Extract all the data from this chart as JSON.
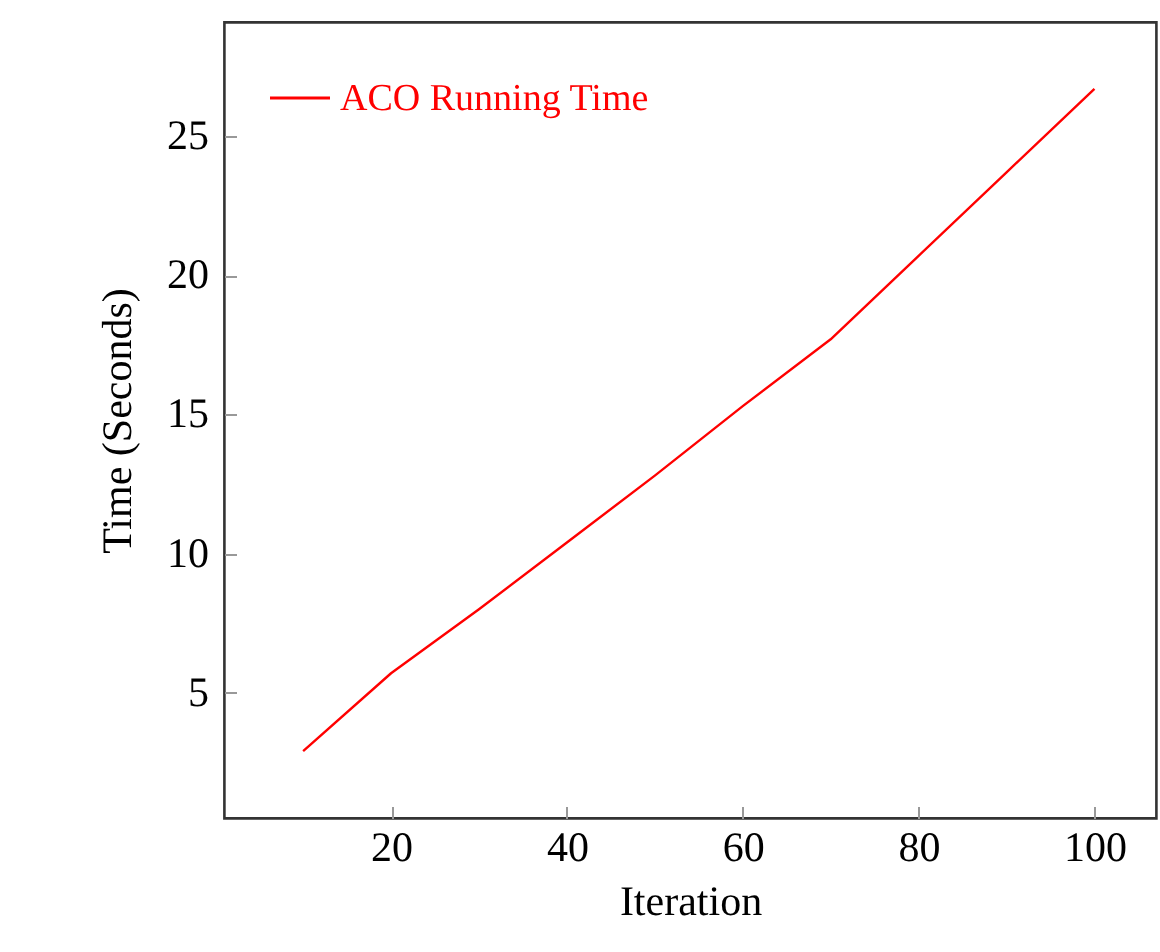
{
  "chart_data": {
    "type": "line",
    "xlabel": "Iteration",
    "ylabel": "Time (Seconds)",
    "x": [
      10,
      20,
      30,
      40,
      50,
      60,
      70,
      80,
      90,
      100
    ],
    "series": [
      {
        "name": "ACO Running Time",
        "color": "#ff0000",
        "values": [
          2.9,
          5.7,
          8.0,
          10.4,
          12.8,
          15.3,
          17.7,
          20.7,
          23.7,
          26.7
        ]
      }
    ],
    "xlim": [
      1,
      107
    ],
    "xticks": [
      20,
      40,
      60,
      80,
      100
    ],
    "ylim": [
      0.5,
      29.1
    ],
    "yticks": [
      5,
      10,
      15,
      20,
      25
    ],
    "legend": "top left",
    "grid": false,
    "marker": "none",
    "line_style": "solid"
  }
}
